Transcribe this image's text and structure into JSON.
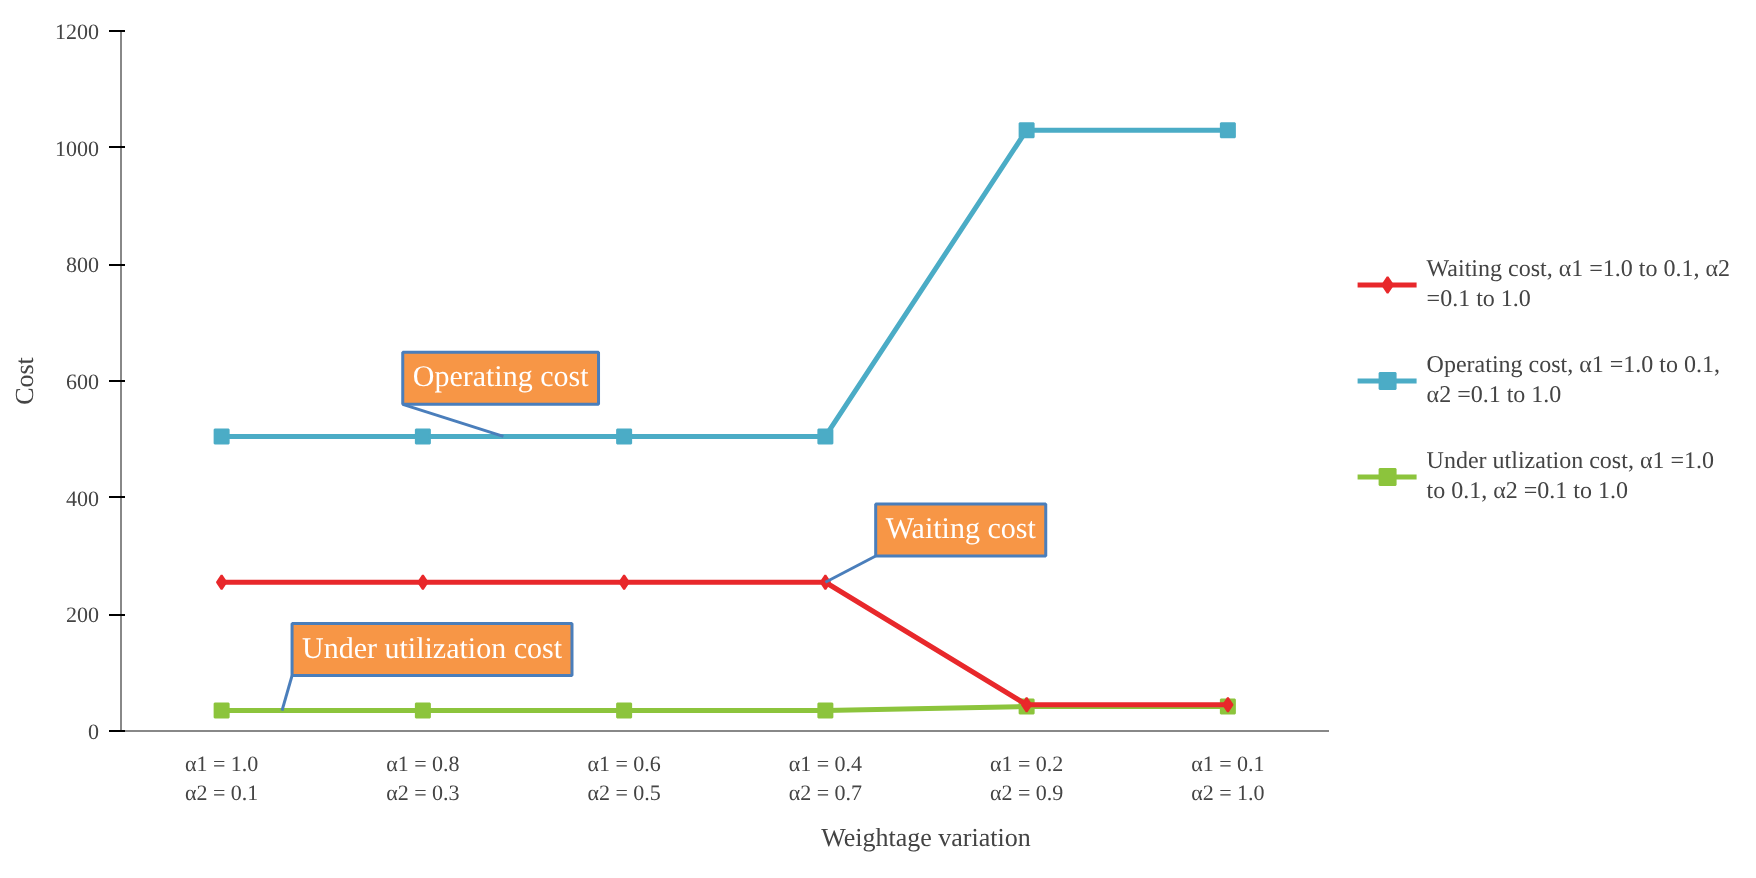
{
  "chart_data": {
    "type": "line",
    "xlabel": "Weightage variation",
    "ylabel": "Cost",
    "categories": [
      "α1 = 1.0\nα2 = 0.1",
      "α1 = 0.8\nα2 = 0.3",
      "α1 = 0.6\nα2 = 0.5",
      "α1 = 0.4\nα2 = 0.7",
      "α1 = 0.2\nα2 = 0.9",
      "α1 = 0.1\nα2 = 1.0"
    ],
    "series": [
      {
        "name": "Waiting cost, α1 =1.0 to 0.1, α2 =0.1 to 1.0",
        "color": "#e8282b",
        "marker": "diamond",
        "values": [
          255,
          255,
          255,
          255,
          45,
          45
        ]
      },
      {
        "name": "Operating cost, α1 =1.0 to 0.1, α2 =0.1 to 1.0",
        "color": "#4bacc6",
        "marker": "square",
        "values": [
          505,
          505,
          505,
          505,
          1030,
          1030
        ]
      },
      {
        "name": "Under utlization cost, α1 =1.0 to 0.1, α2 =0.1 to 1.0",
        "color": "#8cc43c",
        "marker": "square",
        "values": [
          35,
          35,
          35,
          35,
          42,
          42
        ]
      }
    ],
    "ylim": [
      0,
      1200
    ],
    "yticks": [
      0,
      200,
      400,
      600,
      800,
      1000,
      1200
    ],
    "grid": false,
    "legend": "right",
    "annotations": [
      {
        "text": "Operating cost",
        "y": 505
      },
      {
        "text": "Waiting cost",
        "x": "α1 = 0.4\nα2 = 0.7",
        "y": 255
      },
      {
        "text": "Under utilization cost",
        "y": 35
      }
    ]
  }
}
